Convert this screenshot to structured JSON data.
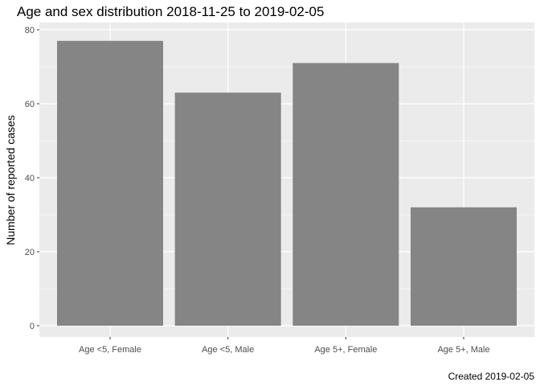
{
  "chart_data": {
    "type": "bar",
    "title": "Age and sex distribution 2018-11-25 to 2019-02-05",
    "xlabel": "",
    "ylabel": "Number of reported cases",
    "categories": [
      "Age <5, Female",
      "Age <5, Male",
      "Age 5+, Female",
      "Age 5+, Male"
    ],
    "values": [
      77,
      63,
      71,
      32
    ],
    "ylim": [
      0,
      80
    ],
    "yticks": [
      0,
      20,
      40,
      60,
      80
    ],
    "grid": true,
    "bar_color": "#858585",
    "panel_color": "#ebebeb",
    "caption": "Created 2019-02-05"
  }
}
